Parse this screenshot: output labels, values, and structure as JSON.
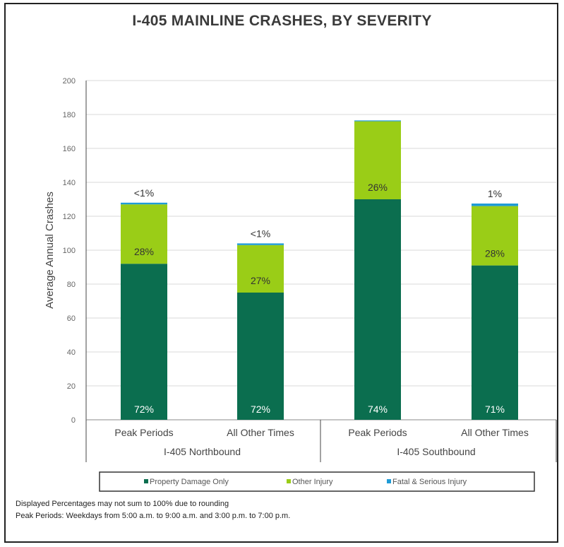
{
  "chart_data": {
    "type": "bar",
    "stacked": true,
    "title": "I-405 MAINLINE CRASHES, BY SEVERITY",
    "ylabel": "Average Annual Crashes",
    "ylim": [
      0,
      200
    ],
    "yticks": [
      0,
      20,
      40,
      60,
      80,
      100,
      120,
      140,
      160,
      180,
      200
    ],
    "grid": true,
    "categories": [
      "Peak Periods",
      "All Other Times",
      "Peak Periods",
      "All Other Times"
    ],
    "groups": [
      {
        "label": "I-405 Northbound",
        "categories": [
          0,
          1
        ]
      },
      {
        "label": "I-405 Southbound",
        "categories": [
          2,
          3
        ]
      }
    ],
    "series": [
      {
        "name": "Property Damage Only",
        "color": "#0b6e4f",
        "values": [
          92,
          75,
          130,
          91
        ],
        "labels": [
          "72%",
          "72%",
          "74%",
          "71%"
        ]
      },
      {
        "name": "Other Injury",
        "color": "#9acd17",
        "values": [
          35,
          28,
          46,
          35
        ],
        "labels": [
          "28%",
          "27%",
          "26%",
          "28%"
        ]
      },
      {
        "name": "Fatal & Serious Injury",
        "color": "#1f9bd6",
        "values": [
          1,
          1,
          0.5,
          1.5
        ],
        "labels": [
          "<1%",
          "<1%",
          "",
          "1%"
        ]
      }
    ],
    "legend_position": "bottom"
  },
  "notes": [
    "Displayed Percentages may not sum to 100% due to rounding",
    "Peak Periods: Weekdays from 5:00 a.m. to 9:00 a.m. and 3:00 p.m. to 7:00 p.m."
  ]
}
